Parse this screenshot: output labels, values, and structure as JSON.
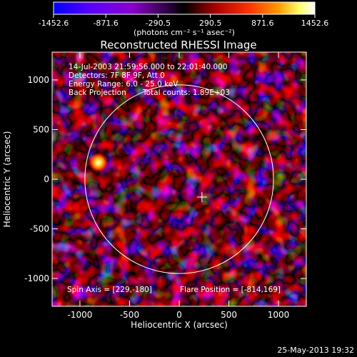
{
  "colorbar": {
    "ticks": [
      "-1452.6",
      "-871.6",
      "-290.5",
      "290.5",
      "871.6",
      "1452.6"
    ],
    "range": [
      -1452.6,
      1452.6
    ],
    "units": "(photons cm⁻² s⁻¹ asec⁻²)",
    "colors": [
      "#0000ff",
      "#5a00ff",
      "#8a00cc",
      "#000000",
      "#aa0000",
      "#ff3300",
      "#ff9900",
      "#ffff66",
      "#ffffff"
    ]
  },
  "plot": {
    "title": "Reconstructed RHESSI Image",
    "time_range": "14-Jul-2003 21:59:56.000 to 22:01:40.000",
    "detectors": "Detectors: 7F 8F 9F, Att 0",
    "energy_range": "Energy Range: 6.0 - 25.0 keV",
    "method": "Back Projection",
    "total_counts": "Total counts: 1.89E+03",
    "spin_axis": "Spin Axis = [229,-180]",
    "flare_position": "Flare Position = [-814,169]",
    "xlabel": "Heliocentric X (arcsec)",
    "ylabel": "Heliocentric Y (arcsec)",
    "xlim": [
      -1280,
      1280
    ],
    "ylim": [
      -1280,
      1280
    ],
    "x_ticks": [
      "-1000",
      "-500",
      "0",
      "500",
      "1000"
    ],
    "x_tick_values": [
      -1000,
      -500,
      0,
      500,
      1000
    ],
    "y_ticks": [
      "-1000",
      "-500",
      "0",
      "500",
      "1000"
    ],
    "y_tick_values": [
      -1000,
      -500,
      0,
      500,
      1000
    ],
    "solar_limb": {
      "center": [
        0,
        0
      ],
      "radius_arcsec": 950
    },
    "spin_axis_marker": [
      229,
      -180
    ],
    "bright_source": [
      -814,
      169
    ]
  },
  "footer": {
    "date": "25-May-2013 19:32"
  }
}
